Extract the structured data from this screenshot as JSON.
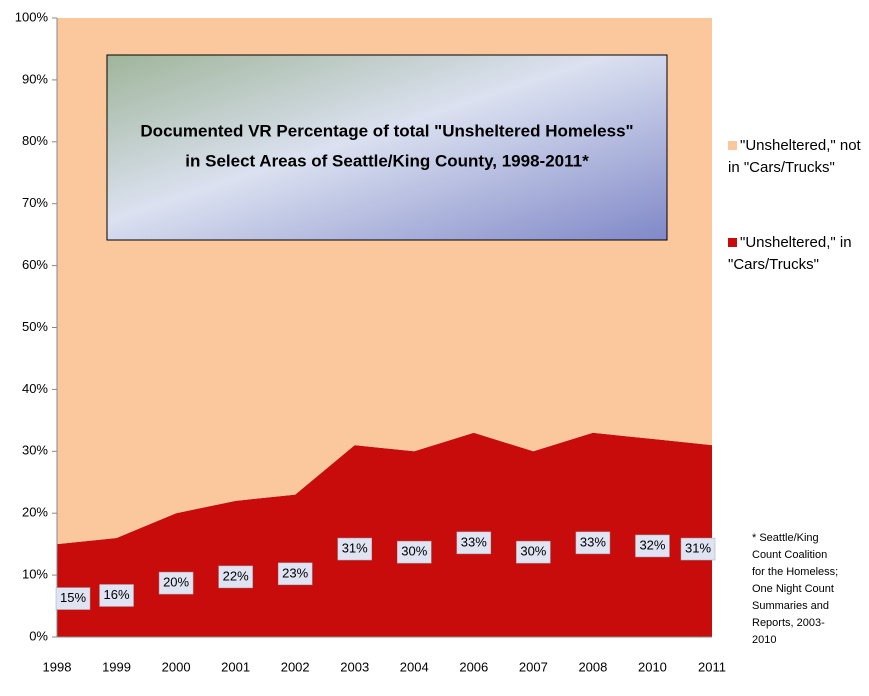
{
  "chart_data": {
    "type": "area",
    "stacked": true,
    "title": [
      "Documented VR Percentage of total \"Unsheltered Homeless\"",
      "in Select Areas of Seattle/King County, 1998-2011*"
    ],
    "categories": [
      "1998",
      "1999",
      "2000",
      "2001",
      "2002",
      "2003",
      "2004",
      "2006",
      "2007",
      "2008",
      "2010",
      "2011"
    ],
    "series": [
      {
        "name": "\"Unsheltered,\" in \"Cars/Trucks\"",
        "color": "#c80c0c",
        "values": [
          15,
          16,
          20,
          22,
          23,
          31,
          30,
          33,
          30,
          33,
          32,
          31
        ],
        "value_labels": [
          "15%",
          "16%",
          "20%",
          "22%",
          "23%",
          "31%",
          "30%",
          "33%",
          "30%",
          "33%",
          "32%",
          "31%"
        ]
      },
      {
        "name": "\"Unsheltered,\" not in \"Cars/Trucks\"",
        "color": "#fac89c",
        "values": [
          85,
          84,
          80,
          78,
          77,
          69,
          70,
          67,
          70,
          67,
          68,
          69
        ]
      }
    ],
    "ylim": [
      0,
      100
    ],
    "yticks": [
      {
        "value": 0,
        "label": "0%"
      },
      {
        "value": 10,
        "label": "10%"
      },
      {
        "value": 20,
        "label": "20%"
      },
      {
        "value": 30,
        "label": "30%"
      },
      {
        "value": 40,
        "label": "40%"
      },
      {
        "value": 50,
        "label": "50%"
      },
      {
        "value": 60,
        "label": "60%"
      },
      {
        "value": 70,
        "label": "70%"
      },
      {
        "value": 80,
        "label": "80%"
      },
      {
        "value": 90,
        "label": "90%"
      },
      {
        "value": 100,
        "label": "100%"
      }
    ],
    "note": "* Seattle/King Count Coalition for the Homeless; One Night Count Summaries and Reports, 2003-2010"
  }
}
